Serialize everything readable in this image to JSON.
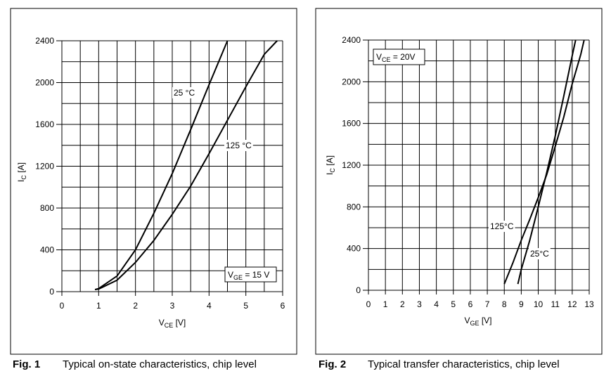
{
  "chart_data": [
    {
      "type": "line",
      "caption_label": "Fig. 1",
      "caption": "Typical on-state characteristics, chip level",
      "xlabel": {
        "main": "V",
        "sub": "CE",
        "rest": " [V]"
      },
      "ylabel": {
        "main": "I",
        "sub": "C",
        "rest": " [A]"
      },
      "annotation": {
        "main": "V",
        "sub": "GE",
        "rest": " = 15 V"
      },
      "xlim": [
        0,
        6
      ],
      "ylim": [
        0,
        2400
      ],
      "xticks": [
        0,
        1,
        2,
        3,
        4,
        5,
        6
      ],
      "yticks": [
        0,
        400,
        800,
        1200,
        1600,
        2000,
        2400
      ],
      "xgrid": [
        0.5,
        1.5,
        2.5,
        3.5,
        4.5,
        5.5
      ],
      "ygrid": [
        200,
        600,
        1000,
        1400,
        1800,
        2200
      ],
      "series": [
        {
          "name": "25 °C",
          "color": "#000000",
          "x": [
            0.9,
            1,
            1.5,
            2,
            2.5,
            3,
            3.5,
            4,
            4.5
          ],
          "values": [
            20,
            30,
            150,
            400,
            750,
            1130,
            1550,
            1980,
            2400
          ]
        },
        {
          "name": "125 °C",
          "color": "#000000",
          "x": [
            0.9,
            1,
            1.5,
            2,
            2.5,
            3,
            3.5,
            4,
            4.5,
            5,
            5.5,
            5.85
          ],
          "values": [
            20,
            25,
            110,
            280,
            490,
            740,
            1010,
            1320,
            1640,
            1960,
            2270,
            2400
          ]
        }
      ]
    },
    {
      "type": "line",
      "caption_label": "Fig. 2",
      "caption": "Typical transfer characteristics, chip level",
      "xlabel": {
        "main": "V",
        "sub": "GE",
        "rest": " [V]"
      },
      "ylabel": {
        "main": "I",
        "sub": "C",
        "rest": " [A]"
      },
      "annotation": {
        "main": "V",
        "sub": "CE",
        "rest": " = 20V"
      },
      "xlim": [
        0,
        13
      ],
      "ylim": [
        0,
        2400
      ],
      "xticks": [
        0,
        1,
        2,
        3,
        4,
        5,
        6,
        7,
        8,
        9,
        10,
        11,
        12,
        13
      ],
      "yticks": [
        0,
        400,
        800,
        1200,
        1600,
        2000,
        2400
      ],
      "ygrid": [
        200,
        600,
        1000,
        1400,
        1800,
        2200
      ],
      "series": [
        {
          "name": "125°C",
          "color": "#000000",
          "x": [
            8,
            8.5,
            9,
            9.5,
            10,
            10.5,
            11,
            11.5,
            12,
            12.5,
            12.7
          ],
          "values": [
            60,
            260,
            480,
            680,
            890,
            1110,
            1380,
            1660,
            1980,
            2260,
            2400
          ]
        },
        {
          "name": "25°C",
          "color": "#000000",
          "x": [
            8.8,
            9,
            9.5,
            10,
            10.5,
            11,
            11.5,
            12,
            12.2
          ],
          "values": [
            60,
            200,
            480,
            800,
            1130,
            1480,
            1860,
            2250,
            2400
          ]
        }
      ]
    }
  ]
}
